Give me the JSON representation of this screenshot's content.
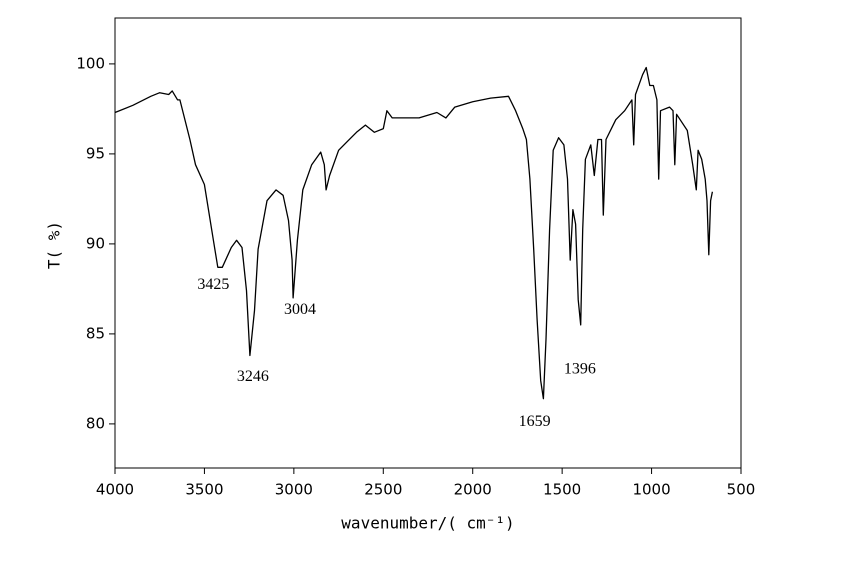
{
  "chart_data": {
    "type": "line",
    "x_label": "wavenumber/( cm⁻¹)",
    "y_label": "T( %)",
    "xlim": [
      4000,
      500
    ],
    "ylim": [
      77.55,
      102.55
    ],
    "xticks": [
      4000,
      3500,
      3000,
      2500,
      2000,
      1500,
      1000,
      500
    ],
    "yticks": [
      80,
      85,
      90,
      95,
      100
    ],
    "series": [
      {
        "color": "#000000",
        "x": [
          4000,
          3900,
          3800,
          3750,
          3700,
          3680,
          3650,
          3637,
          3581,
          3550,
          3500,
          3450,
          3425,
          3400,
          3350,
          3320,
          3290,
          3265,
          3246,
          3220,
          3200,
          3150,
          3100,
          3060,
          3030,
          3010,
          3004,
          2980,
          2950,
          2900,
          2850,
          2830,
          2820,
          2800,
          2750,
          2700,
          2650,
          2600,
          2550,
          2500,
          2480,
          2450,
          2300,
          2200,
          2150,
          2100,
          2000,
          1900,
          1800,
          1760,
          1720,
          1700,
          1680,
          1659,
          1640,
          1620,
          1605,
          1590,
          1570,
          1550,
          1520,
          1490,
          1470,
          1455,
          1440,
          1425,
          1410,
          1396,
          1385,
          1370,
          1340,
          1320,
          1300,
          1280,
          1270,
          1255,
          1200,
          1150,
          1110,
          1100,
          1090,
          1050,
          1030,
          1010,
          990,
          970,
          960,
          950,
          900,
          880,
          870,
          860,
          800,
          770,
          750,
          740,
          720,
          700,
          690,
          680,
          670,
          660
        ],
        "values": [
          97.3,
          97.7,
          98.2,
          98.4,
          98.3,
          98.5,
          98.0,
          98.0,
          95.8,
          94.4,
          93.3,
          90.2,
          88.7,
          88.7,
          89.8,
          90.2,
          89.8,
          87.4,
          83.8,
          86.3,
          89.7,
          92.4,
          93.0,
          92.7,
          91.3,
          89.1,
          87.0,
          90.2,
          93.0,
          94.4,
          95.1,
          94.4,
          93.0,
          93.8,
          95.2,
          95.7,
          96.2,
          96.6,
          96.2,
          96.4,
          97.4,
          97.0,
          97.0,
          97.3,
          97.0,
          97.6,
          97.9,
          98.1,
          98.2,
          97.4,
          96.4,
          95.8,
          93.6,
          89.7,
          85.8,
          82.4,
          81.4,
          84.7,
          90.8,
          95.2,
          95.9,
          95.5,
          93.6,
          89.1,
          91.9,
          91.1,
          86.9,
          85.5,
          90.8,
          94.7,
          95.5,
          93.8,
          95.8,
          95.8,
          91.6,
          95.8,
          96.9,
          97.4,
          98.0,
          95.5,
          98.3,
          99.4,
          99.8,
          98.8,
          98.8,
          98.0,
          93.6,
          97.4,
          97.6,
          97.4,
          94.4,
          97.2,
          96.3,
          94.4,
          93.0,
          95.2,
          94.7,
          93.6,
          92.4,
          89.4,
          92.4,
          92.9
        ]
      }
    ],
    "annotations": [
      {
        "text": "3425",
        "x": 3450,
        "y": 87.7
      },
      {
        "text": "3246",
        "x": 3229,
        "y": 82.6
      },
      {
        "text": "3004",
        "x": 2966,
        "y": 86.3
      },
      {
        "text": "1659",
        "x": 1654,
        "y": 80.1
      },
      {
        "text": "1396",
        "x": 1401,
        "y": 83.0
      }
    ]
  }
}
